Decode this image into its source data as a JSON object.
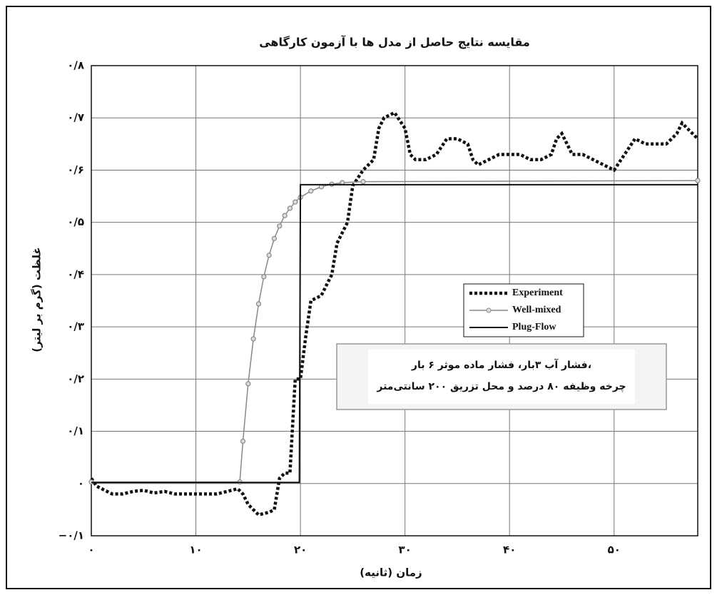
{
  "chart_data": {
    "type": "line",
    "title": "مقایسه نتایج حاصل از مدل ها با آزمون کارگاهی",
    "xlabel": "زمان (ثانیه)",
    "ylabel": "غلظت (گرم بر لیتر)",
    "annotation": [
      "فشار آب ۳بار، فشار ماده موثر ۶ بار،",
      "چرخه وظیفه ۸۰ درصد و محل تزریق ۲۰۰ سانتی‌متر"
    ],
    "xlim": [
      0,
      58
    ],
    "ylim": [
      -0.1,
      0.8
    ],
    "xticks": [
      {
        "value": 0,
        "label": "۰"
      },
      {
        "value": 10,
        "label": "۱۰"
      },
      {
        "value": 20,
        "label": "۲۰"
      },
      {
        "value": 30,
        "label": "۳۰"
      },
      {
        "value": 40,
        "label": "۴۰"
      },
      {
        "value": 50,
        "label": "۵۰"
      }
    ],
    "yticks": [
      {
        "value": -0.1,
        "label": "−۰/۱"
      },
      {
        "value": 0,
        "label": "۰"
      },
      {
        "value": 0.1,
        "label": "۰/۱"
      },
      {
        "value": 0.2,
        "label": "۰/۲"
      },
      {
        "value": 0.3,
        "label": "۰/۳"
      },
      {
        "value": 0.4,
        "label": "۰/۴"
      },
      {
        "value": 0.5,
        "label": "۰/۵"
      },
      {
        "value": 0.6,
        "label": "۰/۶"
      },
      {
        "value": 0.7,
        "label": "۰/۷"
      },
      {
        "value": 0.8,
        "label": "۰/۸"
      }
    ],
    "grid": true,
    "series": [
      {
        "name": "Experiment",
        "color": "#111111",
        "style": "dotted",
        "x": [
          0,
          0.5,
          1,
          2,
          3,
          4,
          5,
          6,
          7,
          8,
          9,
          10,
          11,
          12,
          13,
          14,
          14.5,
          15,
          16,
          17,
          17.5,
          18,
          18.5,
          19,
          19.5,
          20,
          20.5,
          21,
          22,
          22.5,
          23,
          23.5,
          24,
          24.5,
          25,
          26,
          27,
          27.5,
          28,
          29,
          30,
          30.5,
          31,
          32,
          33,
          34,
          35,
          36,
          36.5,
          37,
          38,
          39,
          40,
          41,
          42,
          43,
          44,
          44.5,
          45,
          46,
          47,
          48,
          49,
          50,
          51,
          52,
          53,
          54,
          55,
          56,
          56.5,
          57,
          58
        ],
        "values": [
          0.01,
          -0.005,
          -0.01,
          -0.02,
          -0.02,
          -0.015,
          -0.013,
          -0.018,
          -0.015,
          -0.02,
          -0.02,
          -0.02,
          -0.02,
          -0.02,
          -0.015,
          -0.01,
          -0.02,
          -0.04,
          -0.06,
          -0.055,
          -0.05,
          0.01,
          0.02,
          0.02,
          0.2,
          0.2,
          0.28,
          0.35,
          0.36,
          0.38,
          0.4,
          0.46,
          0.48,
          0.5,
          0.57,
          0.6,
          0.62,
          0.68,
          0.7,
          0.71,
          0.68,
          0.63,
          0.62,
          0.62,
          0.63,
          0.66,
          0.66,
          0.65,
          0.62,
          0.61,
          0.62,
          0.63,
          0.63,
          0.63,
          0.62,
          0.62,
          0.63,
          0.66,
          0.67,
          0.63,
          0.63,
          0.62,
          0.61,
          0.6,
          0.63,
          0.66,
          0.65,
          0.65,
          0.65,
          0.67,
          0.69,
          0.68,
          0.66
        ]
      },
      {
        "name": "Well-mixed",
        "color": "#888888",
        "style": "marker",
        "x": [
          0,
          14.2,
          14.5,
          15,
          15.5,
          16,
          16.5,
          17,
          17.5,
          18,
          18.5,
          19,
          19.5,
          20,
          21,
          22,
          23,
          24,
          26,
          58
        ],
        "values": [
          0.003,
          0.003,
          0.081,
          0.191,
          0.277,
          0.344,
          0.396,
          0.437,
          0.469,
          0.493,
          0.513,
          0.527,
          0.539,
          0.548,
          0.56,
          0.568,
          0.573,
          0.576,
          0.578,
          0.58
        ]
      },
      {
        "name": "Plug-Flow",
        "color": "#111111",
        "style": "solid",
        "x": [
          0,
          19.9,
          20,
          58
        ],
        "values": [
          0.002,
          0.002,
          0.572,
          0.572
        ]
      }
    ],
    "legend": "right"
  }
}
